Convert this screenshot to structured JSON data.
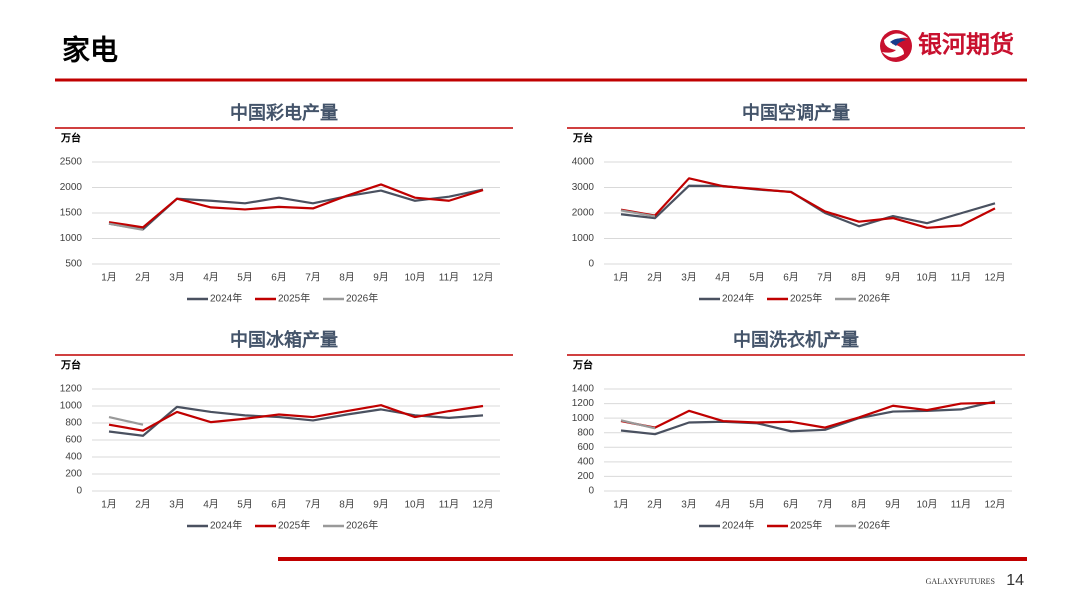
{
  "header": {
    "title": "家电",
    "logo": "银河期货"
  },
  "footer": {
    "brand": "GALAXYFUTURES",
    "page": "14"
  },
  "chart_data": [
    {
      "type": "line",
      "title": "中国彩电产量",
      "unit": "万台",
      "categories": [
        "1月",
        "2月",
        "3月",
        "4月",
        "5月",
        "6月",
        "7月",
        "8月",
        "9月",
        "10月",
        "11月",
        "12月"
      ],
      "series": [
        {
          "name": "2024年",
          "color": "#4a5160",
          "values": [
            1290,
            1180,
            1780,
            1740,
            1690,
            1800,
            1690,
            1830,
            1940,
            1740,
            1820,
            1960
          ]
        },
        {
          "name": "2025年",
          "color": "#c00000",
          "values": [
            1320,
            1220,
            1780,
            1610,
            1570,
            1620,
            1590,
            1840,
            2060,
            1800,
            1740,
            1950
          ]
        },
        {
          "name": "2026年",
          "color": "#999999",
          "values": [
            1290,
            1170,
            null,
            null,
            null,
            null,
            null,
            null,
            null,
            null,
            null,
            null
          ]
        }
      ],
      "ylim": [
        500,
        2500
      ],
      "yticks": [
        500,
        1000,
        1500,
        2000,
        2500
      ],
      "grid": true,
      "legend": "bottom"
    },
    {
      "type": "line",
      "title": "中国空调产量",
      "unit": "万台",
      "categories": [
        "1月",
        "2月",
        "3月",
        "4月",
        "5月",
        "6月",
        "7月",
        "8月",
        "9月",
        "10月",
        "11月",
        "12月"
      ],
      "series": [
        {
          "name": "2024年",
          "color": "#4a5160",
          "values": [
            1950,
            1800,
            3070,
            3060,
            2920,
            2830,
            2000,
            1480,
            1880,
            1600,
            1990,
            2380
          ]
        },
        {
          "name": "2025年",
          "color": "#c00000",
          "values": [
            2130,
            1900,
            3360,
            3050,
            2940,
            2820,
            2060,
            1660,
            1800,
            1420,
            1510,
            2180
          ]
        },
        {
          "name": "2026年",
          "color": "#999999",
          "values": [
            2100,
            1870,
            null,
            null,
            null,
            null,
            null,
            null,
            null,
            null,
            null,
            null
          ]
        }
      ],
      "ylim": [
        0,
        4000
      ],
      "yticks": [
        0,
        1000,
        2000,
        3000,
        4000
      ],
      "grid": true,
      "legend": "bottom"
    },
    {
      "type": "line",
      "title": "中国冰箱产量",
      "unit": "万台",
      "categories": [
        "1月",
        "2月",
        "3月",
        "4月",
        "5月",
        "6月",
        "7月",
        "8月",
        "9月",
        "10月",
        "11月",
        "12月"
      ],
      "series": [
        {
          "name": "2024年",
          "color": "#4a5160",
          "values": [
            700,
            650,
            990,
            930,
            890,
            870,
            830,
            900,
            960,
            890,
            860,
            890
          ]
        },
        {
          "name": "2025年",
          "color": "#c00000",
          "values": [
            780,
            710,
            930,
            810,
            850,
            900,
            870,
            940,
            1010,
            870,
            940,
            1000
          ]
        },
        {
          "name": "2026年",
          "color": "#999999",
          "values": [
            870,
            780,
            null,
            null,
            null,
            null,
            null,
            null,
            null,
            null,
            null,
            null
          ]
        }
      ],
      "ylim": [
        0,
        1200
      ],
      "yticks": [
        0,
        200,
        400,
        600,
        800,
        1000,
        1200
      ],
      "grid": true,
      "legend": "bottom"
    },
    {
      "type": "line",
      "title": "中国洗衣机产量",
      "unit": "万台",
      "categories": [
        "1月",
        "2月",
        "3月",
        "4月",
        "5月",
        "6月",
        "7月",
        "8月",
        "9月",
        "10月",
        "11月",
        "12月"
      ],
      "series": [
        {
          "name": "2024年",
          "color": "#4a5160",
          "values": [
            830,
            780,
            940,
            950,
            930,
            820,
            840,
            1000,
            1090,
            1100,
            1120,
            1230
          ]
        },
        {
          "name": "2025年",
          "color": "#c00000",
          "values": [
            960,
            870,
            1100,
            960,
            940,
            950,
            870,
            1010,
            1170,
            1110,
            1200,
            1210
          ]
        },
        {
          "name": "2026年",
          "color": "#999999",
          "values": [
            970,
            860,
            null,
            null,
            null,
            null,
            null,
            null,
            null,
            null,
            null,
            null
          ]
        }
      ],
      "ylim": [
        0,
        1400
      ],
      "yticks": [
        0,
        200,
        400,
        600,
        800,
        1000,
        1200,
        1400
      ],
      "grid": true,
      "legend": "bottom"
    }
  ]
}
